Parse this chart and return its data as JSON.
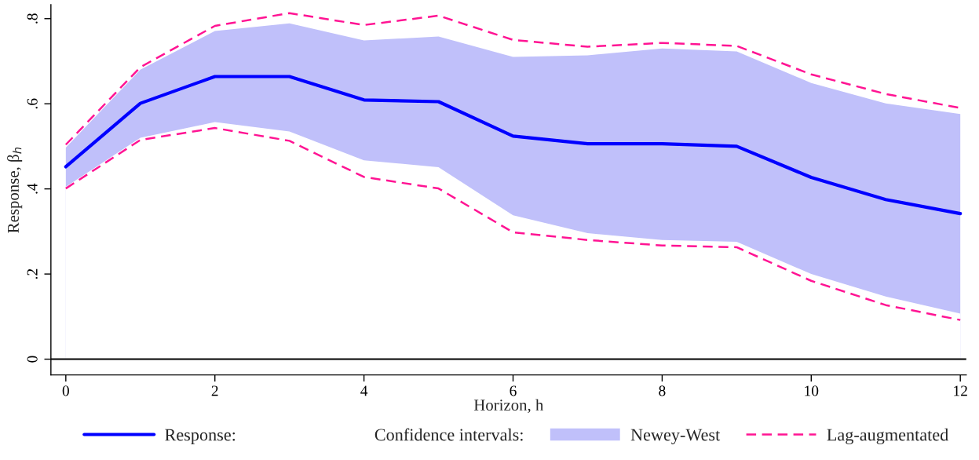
{
  "chart_data": {
    "type": "line",
    "xlabel": "Horizon, h",
    "ylabel": "Response, β$_{h}$",
    "legend_title": "Confidence intervals:",
    "x": [
      0,
      1,
      2,
      3,
      4,
      5,
      6,
      7,
      8,
      9,
      10,
      11,
      12
    ],
    "xlim": [
      -0.2,
      12.08
    ],
    "ylim": [
      -0.037,
      0.833
    ],
    "xticks": [
      0,
      2,
      4,
      6,
      8,
      10,
      12
    ],
    "yticks": [
      {
        "value": 0,
        "label": "0"
      },
      {
        "value": 0.2,
        "label": ".2"
      },
      {
        "value": 0.4,
        "label": ".4"
      },
      {
        "value": 0.6,
        "label": ".6"
      },
      {
        "value": 0.8,
        "label": ".8"
      }
    ],
    "ref_lines": [
      {
        "axis": "y",
        "value": 0,
        "color": "#000000"
      }
    ],
    "legend": "bottom",
    "grid": false,
    "series": [
      {
        "name": "Response:",
        "color": "#0000ff",
        "values": [
          0.452,
          0.601,
          0.664,
          0.664,
          0.609,
          0.605,
          0.524,
          0.506,
          0.506,
          0.5,
          0.427,
          0.375,
          0.342
        ]
      },
      {
        "name": "Newey-West",
        "type": "area",
        "color": "#c0c0fa",
        "values": [
          0.497,
          0.68,
          0.771,
          0.789,
          0.749,
          0.758,
          0.71,
          0.714,
          0.73,
          0.723,
          0.649,
          0.601,
          0.576
        ]
      },
      {
        "type": "area",
        "color": "#ffffff",
        "values": [
          0.405,
          0.52,
          0.557,
          0.535,
          0.467,
          0.451,
          0.338,
          0.296,
          0.28,
          0.276,
          0.2,
          0.147,
          0.107
        ]
      },
      {
        "name": "Lag-augmentated",
        "line_style": "dashed",
        "color": "#ff1493",
        "values": [
          0.504,
          0.686,
          0.783,
          0.813,
          0.785,
          0.807,
          0.75,
          0.734,
          0.743,
          0.736,
          0.669,
          0.623,
          0.59
        ]
      },
      {
        "line_style": "dashed",
        "color": "#ff1493",
        "values": [
          0.401,
          0.515,
          0.543,
          0.513,
          0.428,
          0.401,
          0.298,
          0.28,
          0.267,
          0.263,
          0.184,
          0.127,
          0.092
        ]
      }
    ]
  }
}
